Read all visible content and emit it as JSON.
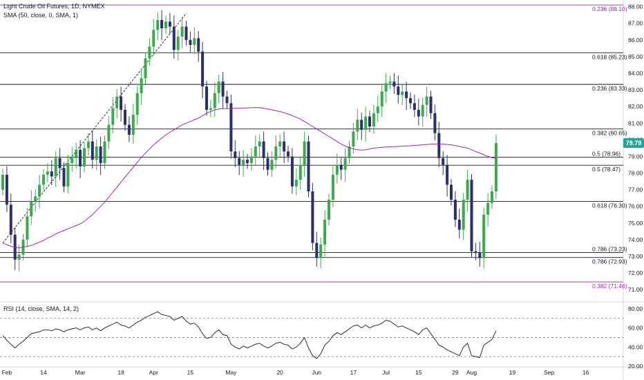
{
  "legend": {
    "main": "Light Crude Oil Futures, 1D, NYMEX",
    "sma": "SMA (50, close, 0, SMA, 1)",
    "rsi": "RSI (14, close, SMA, 14, 2)"
  },
  "last_price": "79.79",
  "colors": {
    "up": "#26a69a",
    "up_candle": "#3aaa4a",
    "down": "#2b2f72",
    "sma": "#9c27b0",
    "rsi": "#131722",
    "fib_purple": "#9c27b0",
    "fib_black": "#131722"
  },
  "chart_data": [
    {
      "type": "candlestick",
      "title": "Light Crude Oil Futures, 1D, NYMEX",
      "y_range": [
        70.3,
        88.4
      ],
      "y_ticks": [
        71,
        72,
        73,
        74,
        75,
        76,
        77,
        78,
        79,
        80,
        81,
        82,
        83,
        84,
        85,
        86,
        87,
        88
      ],
      "y_tick_labels": [
        "71.00",
        "72.00",
        "73.00",
        "74.00",
        "75.00",
        "76.00",
        "77.00",
        "78.00",
        "79.00",
        "80.00",
        "81.00",
        "82.00",
        "83.00",
        "84.00",
        "85.00",
        "86.00",
        "87.00",
        "88.00"
      ],
      "x_labels": [
        {
          "label": "Feb",
          "bar": 1
        },
        {
          "label": "14",
          "bar": 10
        },
        {
          "label": "Mar",
          "bar": 19
        },
        {
          "label": "18",
          "bar": 29
        },
        {
          "label": "Apr",
          "bar": 37
        },
        {
          "label": "15",
          "bar": 46
        },
        {
          "label": "May",
          "bar": 56
        },
        {
          "label": "20",
          "bar": 68
        },
        {
          "label": "Jun",
          "bar": 77
        },
        {
          "label": "17",
          "bar": 86
        },
        {
          "label": "Jul",
          "bar": 94
        },
        {
          "label": "15",
          "bar": 102
        },
        {
          "label": "29",
          "bar": 111
        },
        {
          "label": "Aug",
          "bar": 115
        },
        {
          "label": "19",
          "bar": 125
        },
        {
          "label": "Sep",
          "bar": 134
        },
        {
          "label": "16",
          "bar": 143
        }
      ],
      "closes": [
        77.9,
        76.1,
        74.3,
        72.8,
        73.1,
        74.0,
        75.4,
        76.3,
        76.6,
        77.3,
        77.9,
        78.1,
        77.8,
        78.9,
        78.3,
        77.2,
        78.6,
        78.9,
        79.4,
        78.4,
        79.5,
        79.9,
        78.8,
        79.6,
        78.6,
        79.9,
        80.9,
        81.9,
        82.6,
        81.8,
        80.9,
        80.3,
        81.5,
        82.8,
        83.7,
        84.9,
        85.6,
        86.6,
        87.2,
        86.7,
        87.1,
        86.8,
        85.4,
        86.2,
        86.8,
        86.0,
        85.7,
        86.1,
        85.3,
        83.2,
        81.8,
        81.9,
        82.8,
        83.5,
        82.6,
        82.2,
        79.3,
        78.9,
        78.5,
        78.8,
        78.6,
        79.0,
        79.6,
        79.9,
        78.9,
        78.2,
        78.8,
        79.6,
        79.9,
        79.3,
        79.0,
        77.2,
        77.6,
        78.5,
        79.9,
        76.9,
        73.8,
        72.9,
        73.7,
        75.2,
        76.4,
        77.9,
        78.5,
        78.2,
        78.9,
        79.6,
        80.5,
        81.2,
        80.6,
        81.4,
        80.8,
        81.6,
        82.0,
        82.9,
        83.4,
        83.5,
        83.2,
        82.7,
        82.9,
        82.5,
        82.2,
        81.8,
        81.4,
        82.1,
        82.6,
        81.6,
        80.4,
        78.9,
        78.5,
        77.3,
        76.4,
        75.2,
        74.6,
        76.4,
        77.6,
        73.3,
        73.2,
        72.9,
        75.5,
        76.2,
        76.9,
        79.8
      ],
      "opens": [
        77.0,
        77.9,
        76.1,
        74.3,
        72.8,
        73.1,
        74.0,
        75.4,
        76.3,
        76.6,
        77.3,
        77.9,
        78.1,
        77.8,
        78.9,
        78.3,
        77.2,
        78.6,
        78.9,
        79.4,
        78.4,
        79.5,
        79.9,
        78.8,
        79.6,
        78.6,
        79.9,
        80.9,
        81.9,
        82.6,
        81.8,
        80.9,
        80.3,
        81.5,
        82.8,
        83.7,
        84.9,
        85.6,
        86.6,
        87.2,
        86.7,
        87.1,
        86.8,
        85.4,
        86.2,
        86.8,
        86.0,
        85.7,
        86.1,
        85.3,
        83.2,
        81.8,
        81.9,
        82.8,
        83.5,
        82.6,
        82.2,
        79.3,
        78.9,
        78.5,
        78.8,
        78.6,
        79.0,
        79.6,
        79.9,
        78.9,
        78.2,
        78.8,
        79.6,
        79.9,
        79.3,
        79.0,
        77.2,
        77.6,
        78.5,
        79.9,
        76.9,
        73.8,
        72.9,
        73.7,
        75.2,
        76.4,
        77.9,
        78.5,
        78.2,
        78.9,
        79.6,
        80.5,
        81.2,
        80.6,
        81.4,
        80.8,
        81.6,
        82.0,
        82.9,
        83.4,
        83.5,
        83.2,
        82.7,
        82.9,
        82.5,
        82.2,
        81.8,
        81.4,
        82.1,
        82.6,
        81.6,
        80.4,
        78.9,
        78.5,
        77.3,
        76.4,
        75.2,
        74.6,
        76.4,
        77.6,
        73.3,
        73.2,
        72.9,
        75.5,
        76.2,
        76.9
      ],
      "sma50": {
        "from_bar": 0,
        "values": [
          73.8,
          73.7,
          73.6,
          73.55,
          73.5,
          73.55,
          73.6,
          73.65,
          73.75,
          73.85,
          73.95,
          74.1,
          74.2,
          74.35,
          74.45,
          74.55,
          74.65,
          74.75,
          74.85,
          74.95,
          75.1,
          75.3,
          75.5,
          75.75,
          76.0,
          76.25,
          76.55,
          76.85,
          77.15,
          77.45,
          77.75,
          78.05,
          78.35,
          78.65,
          78.95,
          79.2,
          79.45,
          79.7,
          79.9,
          80.1,
          80.3,
          80.45,
          80.6,
          80.75,
          80.9,
          81.0,
          81.1,
          81.2,
          81.3,
          81.45,
          81.6,
          81.7,
          81.8,
          81.85,
          81.87,
          81.88,
          81.89,
          81.9,
          81.9,
          81.9,
          81.92,
          81.93,
          81.94,
          81.93,
          81.9,
          81.85,
          81.8,
          81.75,
          81.7,
          81.62,
          81.55,
          81.45,
          81.35,
          81.25,
          81.1,
          80.95,
          80.8,
          80.65,
          80.5,
          80.35,
          80.2,
          80.05,
          79.9,
          79.75,
          79.62,
          79.52,
          79.45,
          79.4,
          79.38,
          79.4,
          79.45,
          79.5,
          79.52,
          79.55,
          79.57,
          79.58,
          79.59,
          79.6,
          79.62,
          79.63,
          79.64,
          79.66,
          79.68,
          79.7,
          79.72,
          79.74,
          79.75,
          79.75,
          79.75,
          79.72,
          79.7,
          79.65,
          79.6,
          79.55,
          79.5,
          79.4,
          79.3,
          79.2,
          79.1,
          79.0,
          78.93,
          78.9
        ]
      },
      "fib_levels": [
        {
          "label": "0.236 (88.10)",
          "value": 88.1,
          "color": "purple"
        },
        {
          "label": "0.618 (85.23)",
          "value": 85.23,
          "color": "black"
        },
        {
          "label": "0.236 (83.33)",
          "value": 83.33,
          "color": "black"
        },
        {
          "label": "0.382 (80.65)",
          "value": 80.65,
          "color": "black"
        },
        {
          "label": "0.5 (78.96)",
          "value": 78.96,
          "color": "black"
        },
        {
          "label": "0.5 (78.47)",
          "value": 78.47,
          "color": "black"
        },
        {
          "label": "0.618 (76.30)",
          "value": 76.3,
          "color": "black"
        },
        {
          "label": "0.786 (73.23)",
          "value": 73.23,
          "color": "black"
        },
        {
          "label": "0.786 (72.93)",
          "value": 72.93,
          "color": "black"
        },
        {
          "label": "0.382 (71.46)",
          "value": 71.46,
          "color": "purple"
        }
      ],
      "trendline": {
        "from": {
          "bar": 0,
          "value": 73.8
        },
        "to": {
          "bar": 45,
          "value": 87.6
        }
      }
    },
    {
      "type": "line",
      "title": "RSI (14, close, SMA, 14, 2)",
      "y_range": [
        20,
        85
      ],
      "y_ticks": [
        20,
        40,
        60,
        80
      ],
      "y_tick_labels": [
        "20.00",
        "40.00",
        "60.00",
        "80.00"
      ],
      "bands": [
        70,
        50,
        30
      ],
      "values": [
        52,
        47,
        43,
        39,
        43,
        46,
        50,
        54,
        55,
        56,
        58,
        58,
        57,
        59,
        58,
        56,
        58,
        59,
        60,
        58,
        60,
        61,
        58,
        60,
        57,
        60,
        62,
        64,
        66,
        63,
        62,
        60,
        63,
        66,
        68,
        71,
        73,
        75,
        77,
        74,
        73,
        72,
        68,
        70,
        72,
        67,
        64,
        65,
        61,
        54,
        49,
        50,
        55,
        58,
        53,
        52,
        43,
        40,
        38,
        41,
        39,
        41,
        43,
        44,
        41,
        39,
        41,
        44,
        45,
        43,
        42,
        38,
        40,
        44,
        50,
        39,
        31,
        28,
        33,
        42,
        46,
        52,
        55,
        53,
        56,
        59,
        62,
        63,
        60,
        63,
        60,
        62,
        63,
        65,
        68,
        67,
        64,
        61,
        62,
        60,
        58,
        56,
        53,
        58,
        60,
        54,
        48,
        42,
        40,
        37,
        35,
        33,
        31,
        40,
        44,
        31,
        30,
        29,
        42,
        45,
        48,
        57
      ]
    }
  ]
}
